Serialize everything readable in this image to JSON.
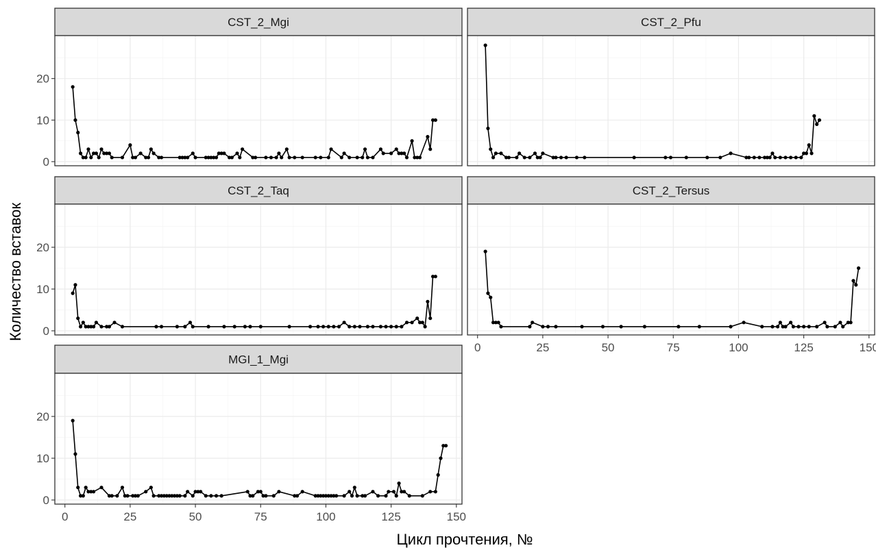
{
  "chart_data": {
    "type": "line",
    "xlabel": "Цикл прочтения, №",
    "ylabel": "Количество вставок",
    "xlim": [
      0,
      150
    ],
    "ylim": [
      0,
      30
    ],
    "x_ticks": [
      "0",
      "25",
      "50",
      "75",
      "100",
      "125",
      "150"
    ],
    "y_ticks": [
      "0",
      "10",
      "20"
    ],
    "grid": true,
    "panels": [
      {
        "name": "CST_2_Mgi",
        "points": [
          [
            3,
            18
          ],
          [
            4,
            10
          ],
          [
            5,
            7
          ],
          [
            6,
            2
          ],
          [
            7,
            1
          ],
          [
            8,
            1
          ],
          [
            9,
            3
          ],
          [
            10,
            1
          ],
          [
            11,
            2
          ],
          [
            12,
            2
          ],
          [
            13,
            1
          ],
          [
            14,
            3
          ],
          [
            15,
            2
          ],
          [
            16,
            2
          ],
          [
            17,
            2
          ],
          [
            18,
            1
          ],
          [
            22,
            1
          ],
          [
            25,
            4
          ],
          [
            26,
            1
          ],
          [
            27,
            1
          ],
          [
            29,
            2
          ],
          [
            31,
            1
          ],
          [
            32,
            1
          ],
          [
            33,
            3
          ],
          [
            34,
            2
          ],
          [
            36,
            1
          ],
          [
            37,
            1
          ],
          [
            44,
            1
          ],
          [
            45,
            1
          ],
          [
            46,
            1
          ],
          [
            47,
            1
          ],
          [
            49,
            2
          ],
          [
            50,
            1
          ],
          [
            54,
            1
          ],
          [
            55,
            1
          ],
          [
            56,
            1
          ],
          [
            57,
            1
          ],
          [
            58,
            1
          ],
          [
            59,
            2
          ],
          [
            60,
            2
          ],
          [
            61,
            2
          ],
          [
            63,
            1
          ],
          [
            64,
            1
          ],
          [
            66,
            2
          ],
          [
            67,
            1
          ],
          [
            68,
            3
          ],
          [
            72,
            1
          ],
          [
            73,
            1
          ],
          [
            77,
            1
          ],
          [
            79,
            1
          ],
          [
            81,
            1
          ],
          [
            82,
            2
          ],
          [
            83,
            1
          ],
          [
            85,
            3
          ],
          [
            86,
            1
          ],
          [
            88,
            1
          ],
          [
            91,
            1
          ],
          [
            96,
            1
          ],
          [
            98,
            1
          ],
          [
            101,
            1
          ],
          [
            102,
            3
          ],
          [
            106,
            1
          ],
          [
            107,
            2
          ],
          [
            109,
            1
          ],
          [
            112,
            1
          ],
          [
            114,
            1
          ],
          [
            115,
            3
          ],
          [
            116,
            1
          ],
          [
            118,
            1
          ],
          [
            121,
            3
          ],
          [
            122,
            2
          ],
          [
            125,
            2
          ],
          [
            127,
            3
          ],
          [
            128,
            2
          ],
          [
            129,
            2
          ],
          [
            130,
            2
          ],
          [
            131,
            1
          ],
          [
            133,
            5
          ],
          [
            134,
            1
          ],
          [
            135,
            1
          ],
          [
            136,
            1
          ],
          [
            139,
            6
          ],
          [
            140,
            3
          ],
          [
            141,
            10
          ],
          [
            142,
            10
          ]
        ]
      },
      {
        "name": "CST_2_Pfu",
        "points": [
          [
            3,
            28
          ],
          [
            4,
            8
          ],
          [
            5,
            3
          ],
          [
            6,
            1
          ],
          [
            7,
            2
          ],
          [
            9,
            2
          ],
          [
            11,
            1
          ],
          [
            12,
            1
          ],
          [
            15,
            1
          ],
          [
            16,
            2
          ],
          [
            18,
            1
          ],
          [
            20,
            1
          ],
          [
            22,
            2
          ],
          [
            23,
            1
          ],
          [
            24,
            1
          ],
          [
            25,
            2
          ],
          [
            29,
            1
          ],
          [
            30,
            1
          ],
          [
            32,
            1
          ],
          [
            34,
            1
          ],
          [
            38,
            1
          ],
          [
            41,
            1
          ],
          [
            60,
            1
          ],
          [
            72,
            1
          ],
          [
            74,
            1
          ],
          [
            80,
            1
          ],
          [
            88,
            1
          ],
          [
            93,
            1
          ],
          [
            97,
            2
          ],
          [
            103,
            1
          ],
          [
            104,
            1
          ],
          [
            106,
            1
          ],
          [
            108,
            1
          ],
          [
            110,
            1
          ],
          [
            111,
            1
          ],
          [
            112,
            1
          ],
          [
            113,
            2
          ],
          [
            114,
            1
          ],
          [
            116,
            1
          ],
          [
            118,
            1
          ],
          [
            120,
            1
          ],
          [
            122,
            1
          ],
          [
            124,
            1
          ],
          [
            125,
            2
          ],
          [
            126,
            2
          ],
          [
            127,
            4
          ],
          [
            128,
            2
          ],
          [
            129,
            11
          ],
          [
            130,
            9
          ],
          [
            131,
            10
          ]
        ]
      },
      {
        "name": "CST_2_Taq",
        "points": [
          [
            3,
            9
          ],
          [
            4,
            11
          ],
          [
            5,
            3
          ],
          [
            6,
            1
          ],
          [
            7,
            2
          ],
          [
            8,
            1
          ],
          [
            9,
            1
          ],
          [
            10,
            1
          ],
          [
            11,
            1
          ],
          [
            12,
            2
          ],
          [
            14,
            1
          ],
          [
            16,
            1
          ],
          [
            17,
            1
          ],
          [
            19,
            2
          ],
          [
            22,
            1
          ],
          [
            35,
            1
          ],
          [
            37,
            1
          ],
          [
            43,
            1
          ],
          [
            46,
            1
          ],
          [
            48,
            2
          ],
          [
            49,
            1
          ],
          [
            55,
            1
          ],
          [
            61,
            1
          ],
          [
            65,
            1
          ],
          [
            69,
            1
          ],
          [
            71,
            1
          ],
          [
            75,
            1
          ],
          [
            86,
            1
          ],
          [
            94,
            1
          ],
          [
            97,
            1
          ],
          [
            99,
            1
          ],
          [
            101,
            1
          ],
          [
            103,
            1
          ],
          [
            105,
            1
          ],
          [
            107,
            2
          ],
          [
            109,
            1
          ],
          [
            111,
            1
          ],
          [
            113,
            1
          ],
          [
            116,
            1
          ],
          [
            118,
            1
          ],
          [
            121,
            1
          ],
          [
            123,
            1
          ],
          [
            125,
            1
          ],
          [
            127,
            1
          ],
          [
            129,
            1
          ],
          [
            131,
            2
          ],
          [
            133,
            2
          ],
          [
            135,
            3
          ],
          [
            136,
            2
          ],
          [
            137,
            2
          ],
          [
            138,
            1
          ],
          [
            139,
            7
          ],
          [
            140,
            3
          ],
          [
            141,
            13
          ],
          [
            142,
            13
          ]
        ]
      },
      {
        "name": "CST_2_Tersus",
        "points": [
          [
            3,
            19
          ],
          [
            4,
            9
          ],
          [
            5,
            8
          ],
          [
            6,
            2
          ],
          [
            7,
            2
          ],
          [
            8,
            2
          ],
          [
            9,
            1
          ],
          [
            20,
            1
          ],
          [
            21,
            2
          ],
          [
            25,
            1
          ],
          [
            27,
            1
          ],
          [
            30,
            1
          ],
          [
            40,
            1
          ],
          [
            48,
            1
          ],
          [
            55,
            1
          ],
          [
            64,
            1
          ],
          [
            77,
            1
          ],
          [
            85,
            1
          ],
          [
            97,
            1
          ],
          [
            102,
            2
          ],
          [
            109,
            1
          ],
          [
            113,
            1
          ],
          [
            115,
            1
          ],
          [
            116,
            2
          ],
          [
            117,
            1
          ],
          [
            118,
            1
          ],
          [
            120,
            2
          ],
          [
            121,
            1
          ],
          [
            123,
            1
          ],
          [
            125,
            1
          ],
          [
            127,
            1
          ],
          [
            130,
            1
          ],
          [
            133,
            2
          ],
          [
            134,
            1
          ],
          [
            137,
            1
          ],
          [
            139,
            2
          ],
          [
            140,
            1
          ],
          [
            142,
            2
          ],
          [
            143,
            2
          ],
          [
            144,
            12
          ],
          [
            145,
            11
          ],
          [
            146,
            15
          ]
        ]
      },
      {
        "name": "MGI_1_Mgi",
        "points": [
          [
            3,
            19
          ],
          [
            4,
            11
          ],
          [
            5,
            3
          ],
          [
            6,
            1
          ],
          [
            7,
            1
          ],
          [
            8,
            3
          ],
          [
            9,
            2
          ],
          [
            10,
            2
          ],
          [
            11,
            2
          ],
          [
            14,
            3
          ],
          [
            17,
            1
          ],
          [
            18,
            1
          ],
          [
            20,
            1
          ],
          [
            22,
            3
          ],
          [
            23,
            1
          ],
          [
            24,
            1
          ],
          [
            26,
            1
          ],
          [
            27,
            1
          ],
          [
            28,
            1
          ],
          [
            31,
            2
          ],
          [
            33,
            3
          ],
          [
            34,
            1
          ],
          [
            36,
            1
          ],
          [
            37,
            1
          ],
          [
            38,
            1
          ],
          [
            39,
            1
          ],
          [
            40,
            1
          ],
          [
            41,
            1
          ],
          [
            42,
            1
          ],
          [
            43,
            1
          ],
          [
            44,
            1
          ],
          [
            46,
            1
          ],
          [
            47,
            2
          ],
          [
            49,
            1
          ],
          [
            50,
            2
          ],
          [
            51,
            2
          ],
          [
            52,
            2
          ],
          [
            54,
            1
          ],
          [
            56,
            1
          ],
          [
            58,
            1
          ],
          [
            60,
            1
          ],
          [
            70,
            2
          ],
          [
            71,
            1
          ],
          [
            72,
            1
          ],
          [
            74,
            2
          ],
          [
            75,
            2
          ],
          [
            76,
            1
          ],
          [
            77,
            1
          ],
          [
            80,
            1
          ],
          [
            82,
            2
          ],
          [
            88,
            1
          ],
          [
            89,
            1
          ],
          [
            91,
            2
          ],
          [
            96,
            1
          ],
          [
            97,
            1
          ],
          [
            98,
            1
          ],
          [
            99,
            1
          ],
          [
            100,
            1
          ],
          [
            101,
            1
          ],
          [
            102,
            1
          ],
          [
            103,
            1
          ],
          [
            104,
            1
          ],
          [
            107,
            1
          ],
          [
            109,
            2
          ],
          [
            110,
            1
          ],
          [
            111,
            3
          ],
          [
            112,
            1
          ],
          [
            114,
            1
          ],
          [
            115,
            1
          ],
          [
            118,
            2
          ],
          [
            120,
            1
          ],
          [
            123,
            1
          ],
          [
            124,
            2
          ],
          [
            126,
            2
          ],
          [
            127,
            1
          ],
          [
            128,
            4
          ],
          [
            129,
            2
          ],
          [
            130,
            2
          ],
          [
            132,
            1
          ],
          [
            137,
            1
          ],
          [
            140,
            2
          ],
          [
            142,
            2
          ],
          [
            143,
            6
          ],
          [
            144,
            10
          ],
          [
            145,
            13
          ],
          [
            146,
            13
          ]
        ]
      }
    ]
  }
}
